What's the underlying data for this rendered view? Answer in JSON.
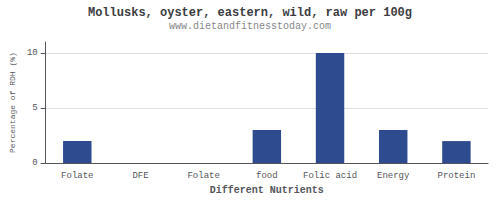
{
  "chart_data": {
    "type": "bar",
    "title": "Mollusks, oyster, eastern, wild, raw per 100g",
    "subtitle": "www.dietandfitnesstoday.com",
    "xlabel": "Different Nutrients",
    "ylabel": "Percentage of RDH (%)",
    "categories": [
      "Folate",
      "DFE",
      "Folate",
      "food",
      "Folic acid",
      "Energy",
      "Protein"
    ],
    "values": [
      2.0,
      0.0,
      0.0,
      3.0,
      10.0,
      3.0,
      2.0
    ],
    "color": "#2d4b8e",
    "ylim": [
      0,
      11
    ],
    "yticks": [
      0,
      5,
      10
    ],
    "grid": true
  }
}
